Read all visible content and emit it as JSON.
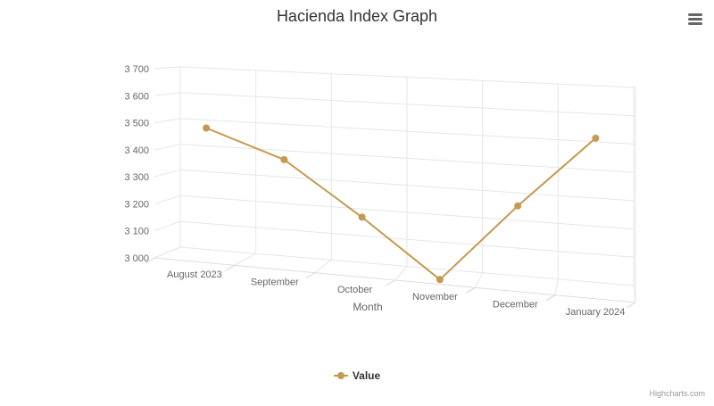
{
  "chart_data": {
    "type": "line",
    "title": "Hacienda Index Graph",
    "xlabel": "Month",
    "ylabel": "",
    "categories": [
      "August 2023",
      "September",
      "October",
      "November",
      "December",
      "January 2024"
    ],
    "series": [
      {
        "name": "Value",
        "color": "#c49a50",
        "values": [
          3480,
          3380,
          3190,
          2990,
          3270,
          3520
        ]
      }
    ],
    "ylim": [
      3000,
      3700
    ],
    "yticks": [
      3000,
      3100,
      3200,
      3300,
      3400,
      3500,
      3600,
      3700
    ],
    "ytick_labels": [
      "3 000",
      "3 100",
      "3 200",
      "3 300",
      "3 400",
      "3 500",
      "3 600",
      "3 700"
    ],
    "grid": true,
    "legend_position": "bottom-center",
    "style": "3d"
  },
  "ui": {
    "menu_icon": "hamburger-icon",
    "credits": "Highcharts.com"
  }
}
